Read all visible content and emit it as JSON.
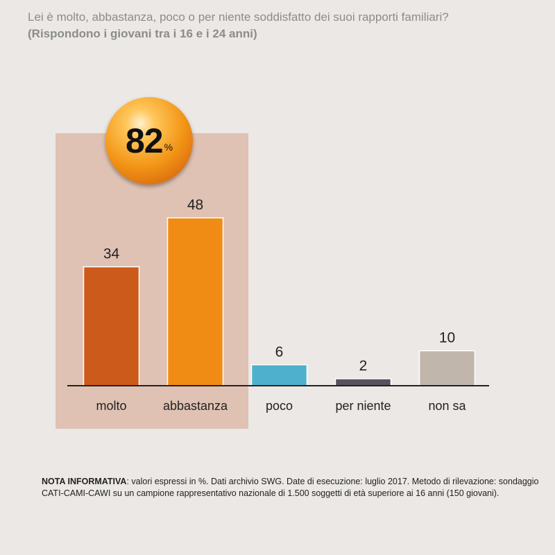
{
  "chart_data": {
    "type": "bar",
    "title": "Lei è molto, abbastanza, poco o per niente soddisfatto dei suoi rapporti familiari?",
    "subtitle": "(Rispondono i giovani tra i 16 e i 24 anni)",
    "categories": [
      "molto",
      "abbastanza",
      "poco",
      "per niente",
      "non sa"
    ],
    "values": [
      34,
      48,
      6,
      2,
      10
    ],
    "colors": [
      "#cc5a1a",
      "#f08c14",
      "#4eb0cc",
      "#5a5160",
      "#c0b6ac"
    ],
    "ylim": [
      0,
      48
    ],
    "grid": false,
    "highlight": {
      "categories": [
        "molto",
        "abbastanza"
      ],
      "total_value": "82",
      "total_unit": "%",
      "color": "#dfc2b3"
    }
  },
  "note": {
    "label": "NOTA INFORMATIVA",
    "text": ": valori espressi in %. Dati archivio SWG. Date di esecuzione: luglio 2017. Metodo di rilevazione: sondaggio CATI-CAMI-CAWI su un campione rappresentativo nazionale di 1.500 soggetti di età superiore ai 16 anni (150 giovani)."
  }
}
